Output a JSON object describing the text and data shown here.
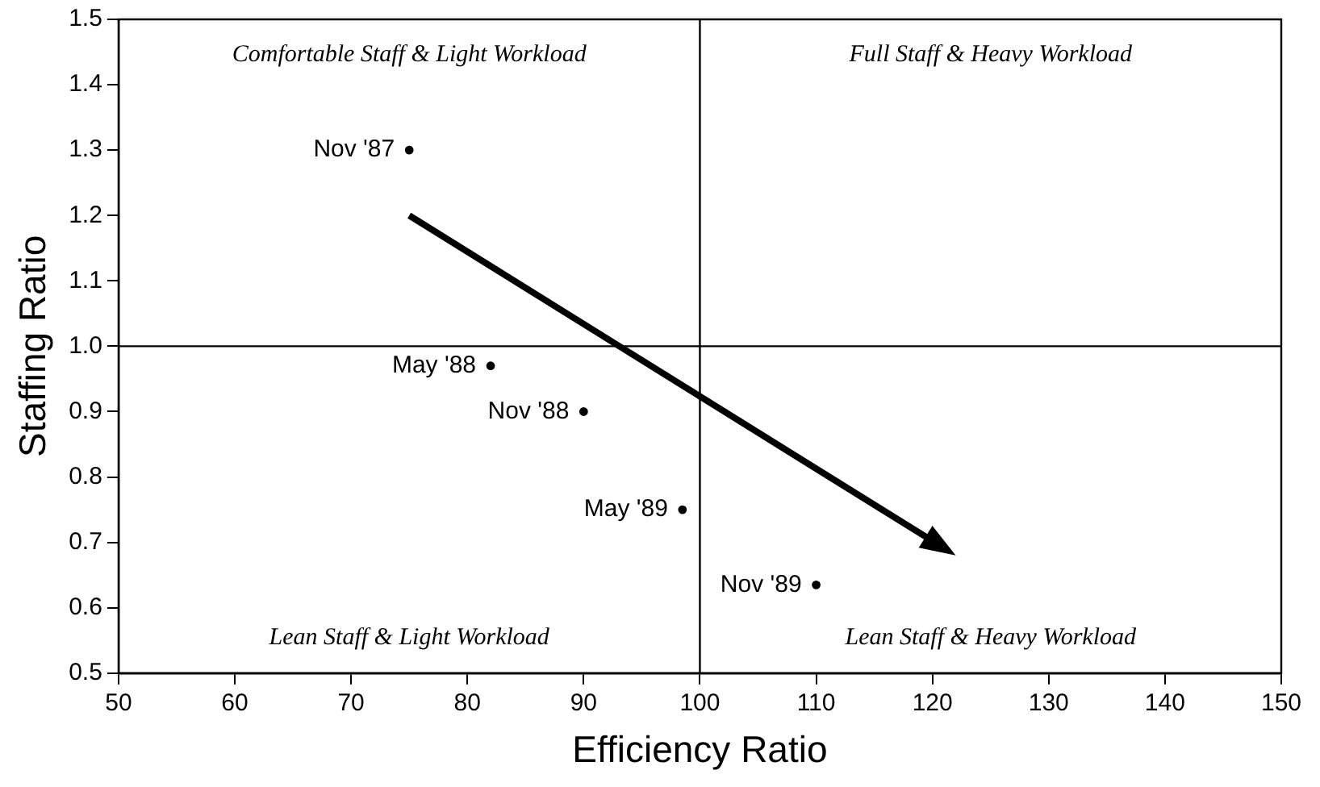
{
  "chart_data": {
    "type": "scatter",
    "xlabel": "Efficiency Ratio",
    "ylabel": "Staffing Ratio",
    "xlim": [
      50,
      150
    ],
    "xticks": [
      50,
      60,
      70,
      80,
      90,
      100,
      110,
      120,
      130,
      140,
      150
    ],
    "ylim": [
      0.5,
      1.5
    ],
    "yticks": [
      {
        "value": 0.5,
        "label": "0.5"
      },
      0.6,
      0.7,
      0.8,
      0.9,
      {
        "value": 1,
        "label": "1.0"
      },
      1.1,
      1.2,
      1.3,
      1.4,
      1.5
    ],
    "grid": false,
    "legend": false,
    "series": [
      {
        "type": "scatter",
        "marker": "circle",
        "color": "#000000",
        "x": [
          75,
          82,
          90,
          98.5,
          110
        ],
        "values": [
          1.3,
          0.97,
          0.9,
          0.75,
          0.635
        ]
      }
    ],
    "ref_lines": [
      {
        "axis": "x",
        "value": 100,
        "color": "#000000"
      },
      {
        "axis": "y",
        "value": 1,
        "color": "#000000"
      }
    ],
    "annotations": [
      {
        "text": "Nov '87",
        "x": 75,
        "y": 1.3
      },
      {
        "text": "May '88",
        "x": 82,
        "y": 0.97
      },
      {
        "text": "Nov '88",
        "x": 90,
        "y": 0.9
      },
      {
        "text": "May '89",
        "x": 98.5,
        "y": 0.75
      },
      {
        "text": "Nov '89",
        "x": 110,
        "y": 0.635
      },
      "Comfortable Staff & Light Workload",
      "Full Staff & Heavy Workload",
      "Lean Staff & Light Workload",
      "Lean Staff & Heavy Workload"
    ]
  }
}
